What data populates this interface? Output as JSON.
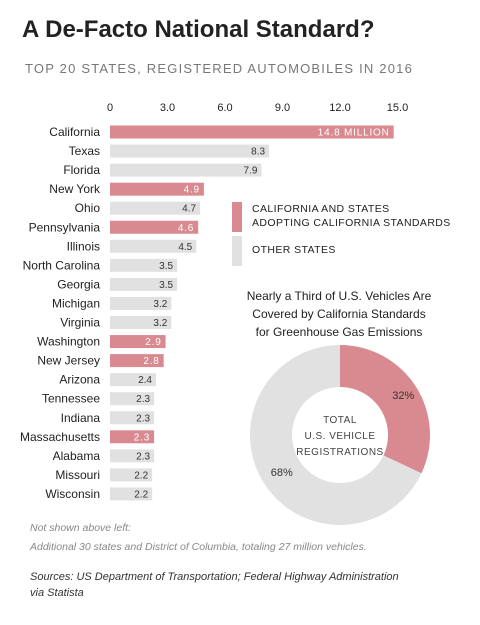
{
  "header": {
    "title": "A De-Facto National Standard?",
    "subtitle": "TOP 20 STATES, REGISTERED AUTOMOBILES IN 2016"
  },
  "colors": {
    "california_standard": "#d98a90",
    "other": "#e1e1e1",
    "text": "#222222"
  },
  "chart_data": [
    {
      "type": "bar",
      "orientation": "horizontal",
      "title": "TOP 20 STATES, REGISTERED AUTOMOBILES IN 2016",
      "xticks": [
        "0",
        "3.0",
        "6.0",
        "9.0",
        "12.0",
        "15.0"
      ],
      "xlim": [
        0,
        16
      ],
      "categories": [
        "California",
        "Texas",
        "Florida",
        "New York",
        "Ohio",
        "Pennsylvania",
        "Illinois",
        "North Carolina",
        "Georgia",
        "Michigan",
        "Virginia",
        "Washington",
        "New Jersey",
        "Arizona",
        "Tennessee",
        "Indiana",
        "Massachusetts",
        "Alabama",
        "Missouri",
        "Wisconsin"
      ],
      "values": [
        14.8,
        8.3,
        7.9,
        4.9,
        4.7,
        4.6,
        4.5,
        3.5,
        3.5,
        3.2,
        3.2,
        2.9,
        2.8,
        2.4,
        2.3,
        2.3,
        2.3,
        2.3,
        2.2,
        2.2
      ],
      "value_labels": [
        "14.8 MILLION",
        "8.3",
        "7.9",
        "4.9",
        "4.7",
        "4.6",
        "4.5",
        "3.5",
        "3.5",
        "3.2",
        "3.2",
        "2.9",
        "2.8",
        "2.4",
        "2.3",
        "2.3",
        "2.3",
        "2.3",
        "2.2",
        "2.2"
      ],
      "california_standard": [
        true,
        false,
        false,
        true,
        false,
        true,
        false,
        false,
        false,
        false,
        false,
        true,
        true,
        false,
        false,
        false,
        true,
        false,
        false,
        false
      ],
      "legend": [
        {
          "label_line1": "CALIFORNIA AND STATES",
          "label_line2": "ADOPTING CALIFORNIA STANDARDS",
          "group": "california_standard"
        },
        {
          "label_line1": "OTHER STATES",
          "label_line2": "",
          "group": "other"
        }
      ],
      "legend_position": "right"
    },
    {
      "type": "pie",
      "variant": "donut",
      "title_lines": [
        "Nearly a Third of U.S. Vehicles Are",
        "Covered by California Standards",
        "for Greenhouse Gas Emissions"
      ],
      "slices": [
        {
          "label": "32%",
          "value": 32,
          "group": "california_standard"
        },
        {
          "label": "68%",
          "value": 68,
          "group": "other"
        }
      ],
      "center_text": [
        "TOTAL",
        "U.S. VEHICLE",
        "REGISTRATIONS"
      ]
    }
  ],
  "notes": {
    "line1": "Not shown above left:",
    "line2": "Additional 30 states and District of Columbia, totaling 27 million vehicles."
  },
  "source": {
    "line1": "Sources: US Department of Transportation; Federal Highway Administration",
    "line2": "via Statista"
  }
}
